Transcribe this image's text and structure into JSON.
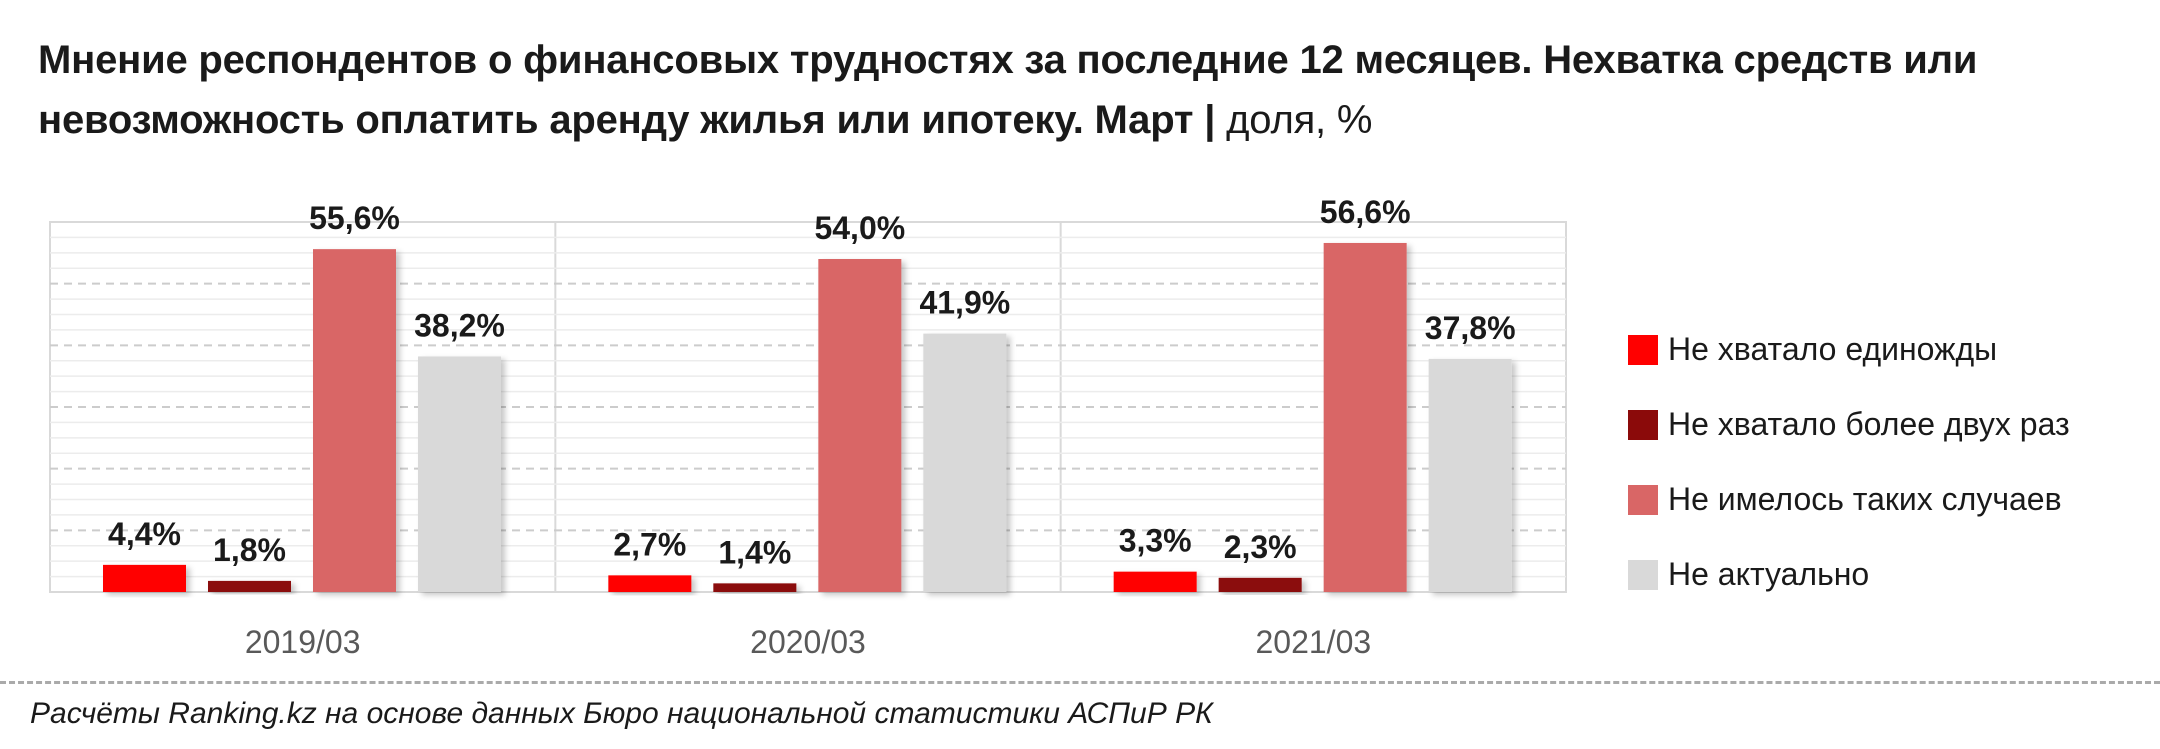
{
  "title": {
    "main": "Мнение респондентов о финансовых трудностях за последние 12 месяцев. Нехватка средств или невозможность оплатить аренду жилья или ипотеку. Март",
    "separator": " | ",
    "unit": "доля, %"
  },
  "source": "Расчёты Ranking.kz на основе данных Бюро национальной статистики АСПиР РК",
  "chart_data": {
    "type": "bar",
    "title": "Мнение респондентов о финансовых трудностях за последние 12 месяцев. Нехватка средств или невозможность оплатить аренду жилья или ипотеку. Март | доля, %",
    "categories": [
      "2019/03",
      "2020/03",
      "2021/03"
    ],
    "series": [
      {
        "name": "Не хватало единожды",
        "color": "#ff0000",
        "values": [
          4.4,
          2.7,
          3.3
        ],
        "labels": [
          "4,4%",
          "2,7%",
          "3,3%"
        ]
      },
      {
        "name": "Не хватало более двух раз",
        "color": "#8b0a0a",
        "values": [
          1.8,
          1.4,
          2.3
        ],
        "labels": [
          "1,8%",
          "1,4%",
          "2,3%"
        ]
      },
      {
        "name": "Не имелось таких случаев",
        "color": "#d96666",
        "values": [
          55.6,
          54.0,
          56.6
        ],
        "labels": [
          "55,6%",
          "54,0%",
          "56,6%"
        ]
      },
      {
        "name": "Не актуально",
        "color": "#d9d9d9",
        "values": [
          38.2,
          41.9,
          37.8
        ],
        "labels": [
          "38,2%",
          "41,9%",
          "37,8%"
        ]
      }
    ],
    "ylim": [
      0,
      60
    ],
    "grid": true,
    "legend": "right",
    "xlabel": "",
    "ylabel": ""
  }
}
